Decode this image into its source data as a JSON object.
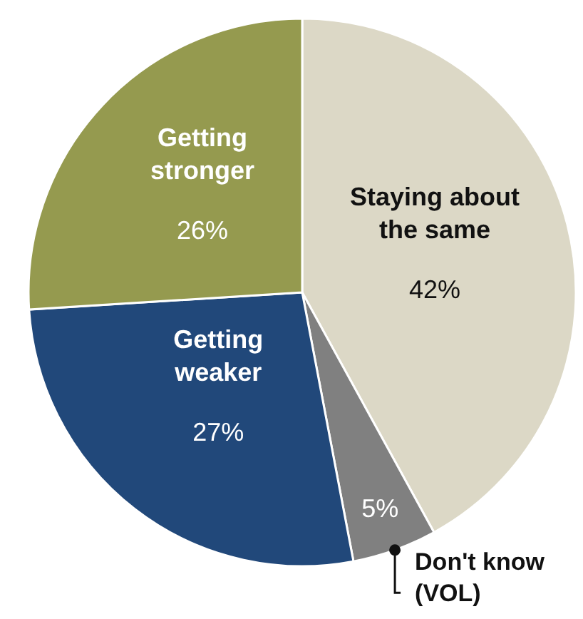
{
  "chart_data": {
    "type": "pie",
    "categories": [
      "Staying about the same",
      "Don't know (VOL)",
      "Getting weaker",
      "Getting stronger"
    ],
    "values": [
      42,
      5,
      27,
      26
    ],
    "value_labels": [
      "42%",
      "5%",
      "27%",
      "26%"
    ],
    "colors": [
      "#dcd8c6",
      "#808080",
      "#21487a",
      "#959a4f"
    ],
    "legend": false
  }
}
